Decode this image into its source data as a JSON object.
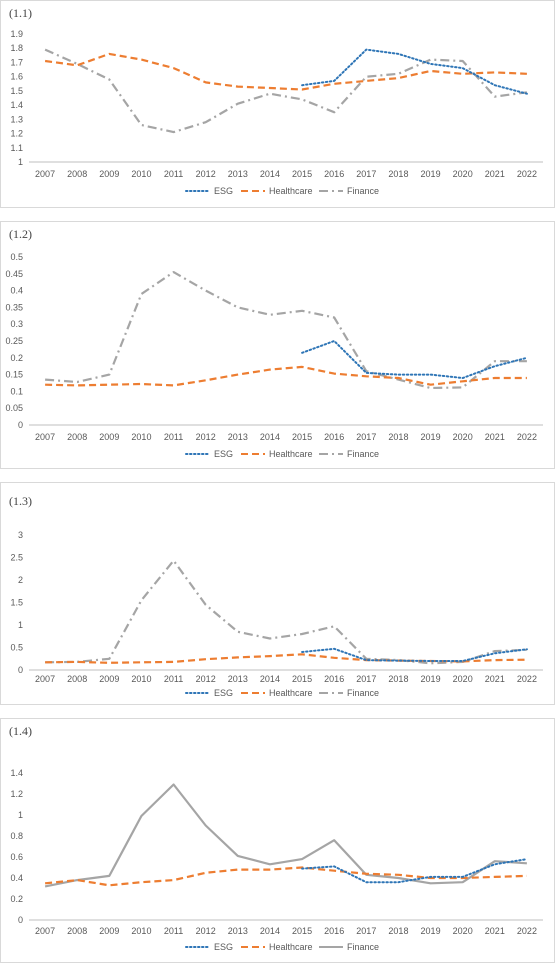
{
  "chart_data": [
    {
      "type": "line",
      "panel_label": "(1.1)",
      "categories": [
        "2007",
        "2008",
        "2009",
        "2010",
        "2011",
        "2012",
        "2013",
        "2014",
        "2015",
        "2016",
        "2017",
        "2018",
        "2019",
        "2020",
        "2021",
        "2022"
      ],
      "ylim": [
        1,
        1.9
      ],
      "yticks": [
        1,
        1.1,
        1.2,
        1.3,
        1.4,
        1.5,
        1.6,
        1.7,
        1.8,
        1.9
      ],
      "series": [
        {
          "name": "ESG",
          "values": [
            null,
            null,
            null,
            null,
            null,
            null,
            null,
            null,
            1.54,
            1.57,
            1.79,
            1.76,
            1.69,
            1.66,
            1.54,
            1.48
          ]
        },
        {
          "name": "Healthcare",
          "values": [
            1.71,
            1.68,
            1.76,
            1.72,
            1.66,
            1.56,
            1.53,
            1.52,
            1.51,
            1.55,
            1.57,
            1.59,
            1.64,
            1.62,
            1.63,
            1.62
          ]
        },
        {
          "name": "Finance",
          "values": [
            1.79,
            1.69,
            1.58,
            1.26,
            1.21,
            1.28,
            1.41,
            1.48,
            1.44,
            1.35,
            1.6,
            1.62,
            1.72,
            1.71,
            1.46,
            1.49
          ]
        }
      ],
      "legend_position": "bottom"
    },
    {
      "type": "line",
      "panel_label": "(1.2)",
      "categories": [
        "2007",
        "2008",
        "2009",
        "2010",
        "2011",
        "2012",
        "2013",
        "2014",
        "2015",
        "2016",
        "2017",
        "2018",
        "2019",
        "2020",
        "2021",
        "2022"
      ],
      "ylim": [
        0,
        0.5
      ],
      "yticks": [
        0,
        0.05,
        0.1,
        0.15,
        0.2,
        0.25,
        0.3,
        0.35,
        0.4,
        0.45,
        0.5
      ],
      "series": [
        {
          "name": "ESG",
          "values": [
            null,
            null,
            null,
            null,
            null,
            null,
            null,
            null,
            0.215,
            0.25,
            0.155,
            0.15,
            0.15,
            0.14,
            0.175,
            0.2
          ]
        },
        {
          "name": "Healthcare",
          "values": [
            0.12,
            0.118,
            0.12,
            0.122,
            0.118,
            0.133,
            0.15,
            0.165,
            0.173,
            0.153,
            0.145,
            0.14,
            0.12,
            0.13,
            0.14,
            0.14
          ]
        },
        {
          "name": "Finance",
          "values": [
            0.135,
            0.128,
            0.15,
            0.39,
            0.455,
            0.4,
            0.35,
            0.328,
            0.34,
            0.32,
            0.16,
            0.135,
            0.11,
            0.112,
            0.19,
            0.19
          ]
        }
      ],
      "legend_position": "bottom"
    },
    {
      "type": "line",
      "panel_label": "(1.3)",
      "categories": [
        "2007",
        "2008",
        "2009",
        "2010",
        "2011",
        "2012",
        "2013",
        "2014",
        "2015",
        "2016",
        "2017",
        "2018",
        "2019",
        "2020",
        "2021",
        "2022"
      ],
      "ylim": [
        0,
        3
      ],
      "yticks": [
        0,
        0.5,
        1,
        1.5,
        2,
        2.5,
        3
      ],
      "series": [
        {
          "name": "ESG",
          "values": [
            null,
            null,
            null,
            null,
            null,
            null,
            null,
            null,
            0.4,
            0.47,
            0.22,
            0.21,
            0.2,
            0.2,
            0.37,
            0.46
          ]
        },
        {
          "name": "Healthcare",
          "values": [
            0.17,
            0.18,
            0.16,
            0.17,
            0.18,
            0.24,
            0.28,
            0.31,
            0.35,
            0.27,
            0.22,
            0.21,
            0.2,
            0.19,
            0.22,
            0.23
          ]
        },
        {
          "name": "Finance",
          "values": [
            0.17,
            0.18,
            0.25,
            1.55,
            2.43,
            1.45,
            0.85,
            0.7,
            0.8,
            0.97,
            0.25,
            0.22,
            0.15,
            0.18,
            0.42,
            0.45
          ]
        }
      ],
      "legend_position": "bottom"
    },
    {
      "type": "line",
      "panel_label": "(1.4)",
      "categories": [
        "2007",
        "2008",
        "2009",
        "2010",
        "2011",
        "2012",
        "2013",
        "2014",
        "2015",
        "2016",
        "2017",
        "2018",
        "2019",
        "2020",
        "2021",
        "2022"
      ],
      "ylim": [
        0,
        1.4
      ],
      "yticks": [
        0,
        0.2,
        0.4,
        0.6,
        0.8,
        1,
        1.2,
        1.4
      ],
      "series": [
        {
          "name": "ESG",
          "values": [
            null,
            null,
            null,
            null,
            null,
            null,
            null,
            null,
            0.49,
            0.51,
            0.36,
            0.36,
            0.41,
            0.41,
            0.53,
            0.58
          ]
        },
        {
          "name": "Healthcare",
          "values": [
            0.35,
            0.38,
            0.33,
            0.36,
            0.38,
            0.45,
            0.48,
            0.48,
            0.5,
            0.47,
            0.44,
            0.43,
            0.4,
            0.4,
            0.41,
            0.42
          ]
        },
        {
          "name": "Finance",
          "values": [
            0.32,
            0.38,
            0.42,
            0.99,
            1.29,
            0.9,
            0.61,
            0.53,
            0.58,
            0.76,
            0.43,
            0.4,
            0.35,
            0.36,
            0.56,
            0.54
          ]
        }
      ],
      "legend_position": "bottom"
    }
  ],
  "colors": {
    "ESG": "#2e75b6",
    "Healthcare": "#ed7d31",
    "Finance": "#a5a5a5",
    "axis": "#bfbfbf",
    "tick_text": "#595959"
  },
  "styles": {
    "panel_1": {
      "ESG": "dotted",
      "Healthcare": "dashed",
      "Finance": "dash-dot"
    },
    "panel_2": {
      "ESG": "dotted",
      "Healthcare": "dashed",
      "Finance": "dash-dot"
    },
    "panel_3": {
      "ESG": "dotted",
      "Healthcare": "dashed",
      "Finance": "dash-dot"
    },
    "panel_4": {
      "ESG": "dotted",
      "Healthcare": "dashed",
      "Finance": "solid"
    }
  }
}
